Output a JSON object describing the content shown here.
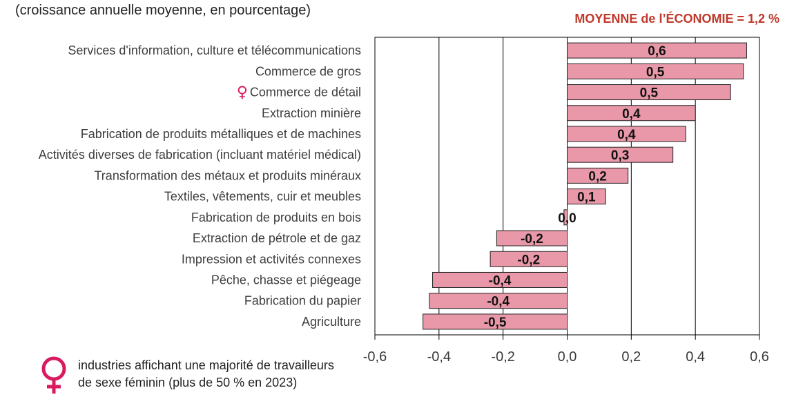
{
  "header": {
    "subtitle": "(croissance annuelle moyenne, en pourcentage)",
    "average_note": "MOYENNE de l’ÉCONOMIE = 1,2 %"
  },
  "legend": {
    "icon": "female-symbol-icon",
    "icon_color": "#d81b60",
    "text_line1": "industries affichant une majorité de travailleurs",
    "text_line2": "de sexe féminin (plus de 50 % en 2023)"
  },
  "chart_data": {
    "type": "bar",
    "orientation": "horizontal",
    "categories": [
      "Services d'information, culture et télécommunications",
      "Commerce de gros",
      "Commerce de détail",
      "Extraction minière",
      "Fabrication de produits métalliques et de machines",
      "Activités diverses de fabrication (incluant matériel médical)",
      "Transformation des métaux et produits minéraux",
      "Textiles, vêtements, cuir et meubles",
      "Fabrication de produits en bois",
      "Extraction de pétrole et de gaz",
      "Impression et activités connexes",
      "Pêche, chasse et piégeage",
      "Fabrication du papier",
      "Agriculture"
    ],
    "female_majority": [
      false,
      false,
      true,
      false,
      false,
      false,
      false,
      false,
      false,
      false,
      false,
      false,
      false,
      false
    ],
    "values": [
      0.56,
      0.55,
      0.51,
      0.4,
      0.37,
      0.33,
      0.19,
      0.12,
      -0.01,
      -0.22,
      -0.24,
      -0.42,
      -0.43,
      -0.45
    ],
    "value_labels": [
      "0,6",
      "0,5",
      "0,5",
      "0,4",
      "0,4",
      "0,3",
      "0,2",
      "0,1",
      "0,0",
      "-0,2",
      "-0,2",
      "-0,4",
      "-0,4",
      "-0,5"
    ],
    "xlim": [
      -0.6,
      0.6
    ],
    "x_ticks": [
      -0.6,
      -0.4,
      -0.2,
      0.0,
      0.2,
      0.4,
      0.6
    ],
    "x_tick_labels": [
      "-0,6",
      "-0,4",
      "-0,2",
      "0,0",
      "0,2",
      "0,4",
      "0,6"
    ],
    "grid": "vertical",
    "bar_color": "#e898a8",
    "female_symbol": "♀",
    "female_color": "#d81b60"
  }
}
